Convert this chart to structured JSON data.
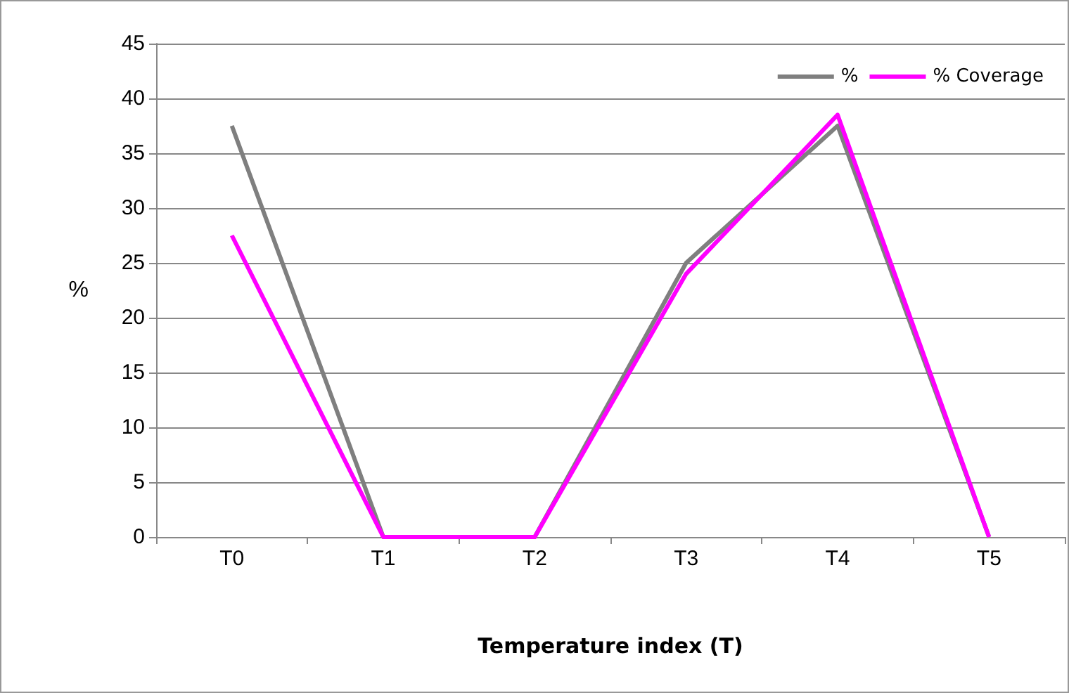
{
  "chart_data": {
    "type": "line",
    "xlabel": "Temperature index (T)",
    "ylabel": "%",
    "categories": [
      "T0",
      "T1",
      "T2",
      "T3",
      "T4",
      "T5"
    ],
    "series": [
      {
        "name": "%",
        "color": "#7f7f7f",
        "values": [
          37.5,
          0,
          0,
          25,
          37.5,
          0
        ]
      },
      {
        "name": "% Coverage",
        "color": "#ff00ff",
        "values": [
          27.5,
          0,
          0,
          24,
          38.5,
          0
        ]
      }
    ],
    "ylim": [
      0,
      45
    ],
    "yticks": [
      0,
      5,
      10,
      15,
      20,
      25,
      30,
      35,
      40,
      45
    ],
    "grid": "y",
    "legend": "top right",
    "marker": "none",
    "line_style": "solid"
  }
}
